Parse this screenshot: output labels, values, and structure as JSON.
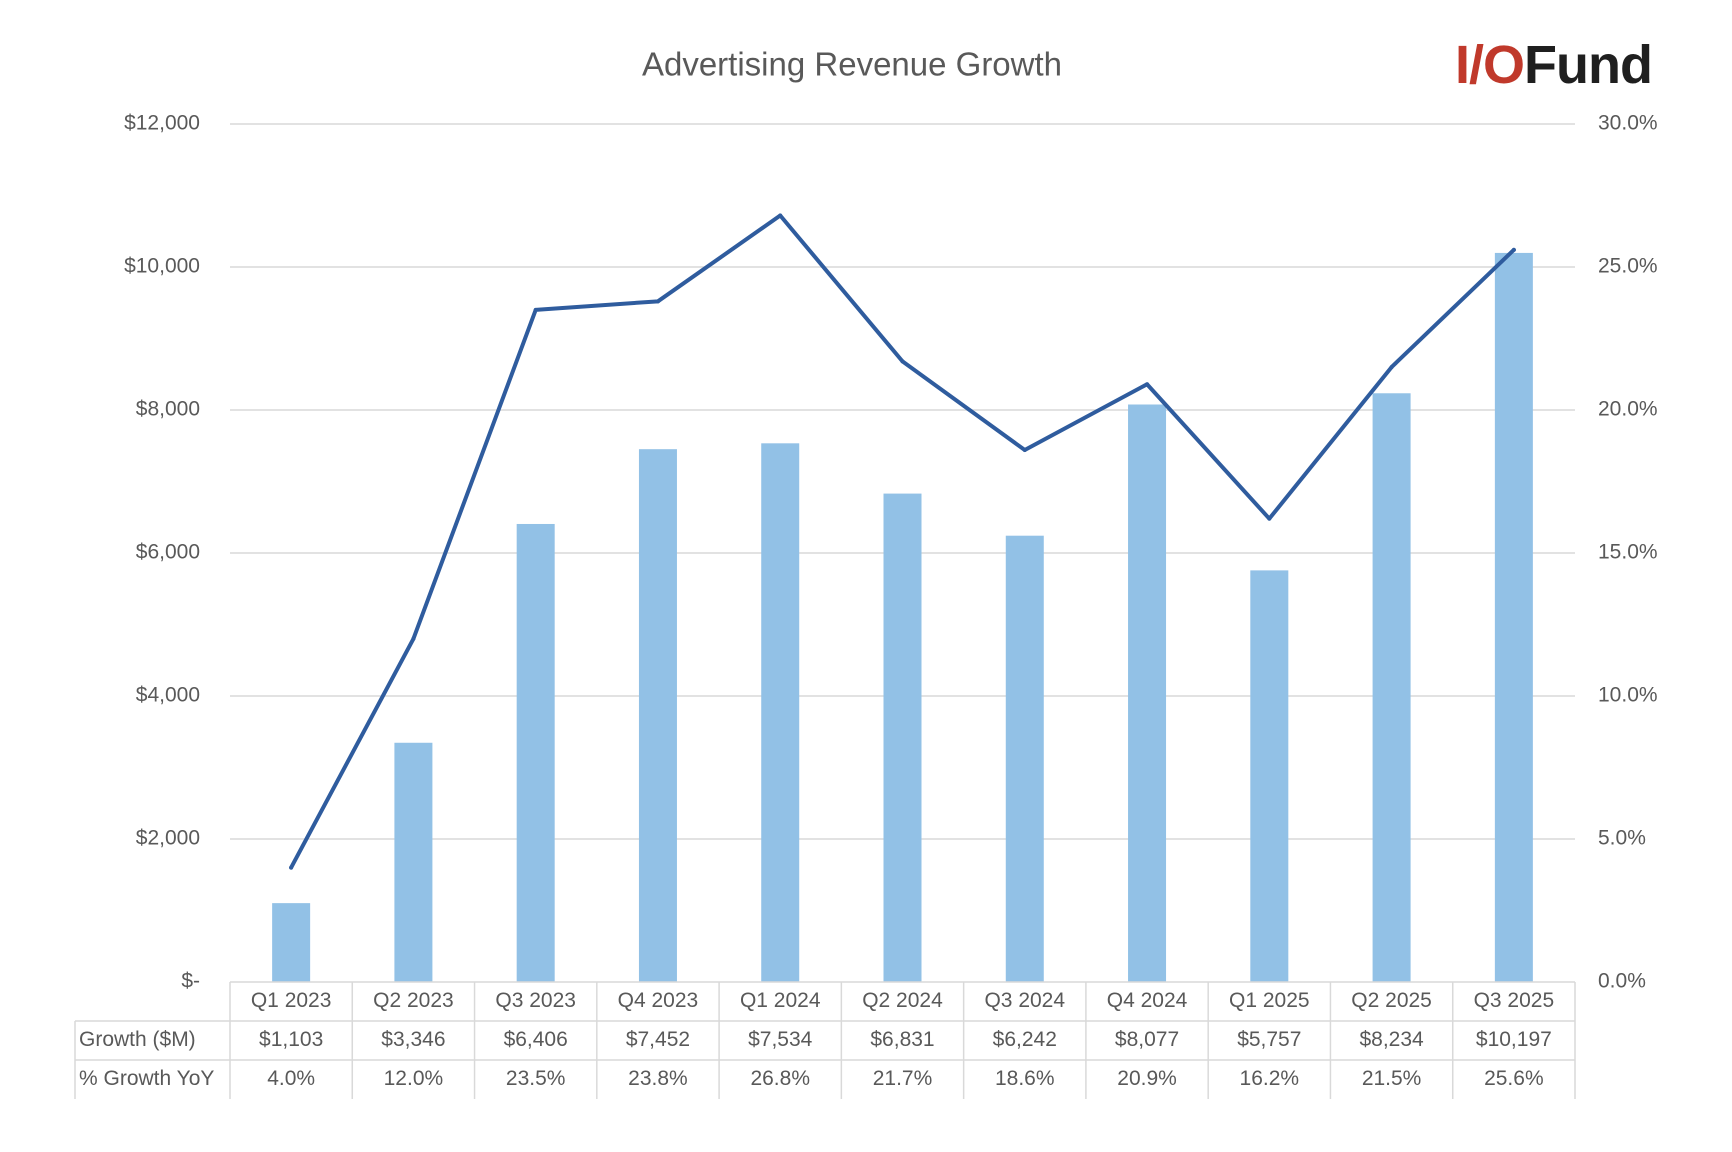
{
  "logo": {
    "io": "I/O",
    "fund": "Fund",
    "io_color": "#c0392b",
    "fund_color": "#1f1f1f"
  },
  "chart_data": {
    "type": "bar",
    "title": "Advertising Revenue Growth",
    "categories": [
      "Q1 2023",
      "Q2 2023",
      "Q3 2023",
      "Q4 2023",
      "Q1 2024",
      "Q2 2024",
      "Q3 2024",
      "Q4 2024",
      "Q1 2025",
      "Q2 2025",
      "Q3 2025"
    ],
    "series": [
      {
        "name": "Growth ($M)",
        "type": "bar",
        "axis": "left",
        "color": "#92c1e6",
        "values": [
          1103,
          3346,
          6406,
          7452,
          7534,
          6831,
          6242,
          8077,
          5757,
          8234,
          10197
        ],
        "labels": [
          "$1,103",
          "$3,346",
          "$6,406",
          "$7,452",
          "$7,534",
          "$6,831",
          "$6,242",
          "$8,077",
          "$5,757",
          "$8,234",
          "$10,197"
        ]
      },
      {
        "name": "% Growth YoY",
        "type": "line",
        "axis": "right",
        "color": "#2f5c9e",
        "values": [
          4.0,
          12.0,
          23.5,
          23.8,
          26.8,
          21.7,
          18.6,
          20.9,
          16.2,
          21.5,
          25.6
        ],
        "labels": [
          "4.0%",
          "12.0%",
          "23.5%",
          "23.8%",
          "26.8%",
          "21.7%",
          "18.6%",
          "20.9%",
          "16.2%",
          "21.5%",
          "25.6%"
        ]
      }
    ],
    "y_left": {
      "ylim": [
        0,
        12000
      ],
      "ticks": [
        0,
        2000,
        4000,
        6000,
        8000,
        10000,
        12000
      ],
      "tick_labels": [
        "$-",
        "$2,000",
        "$4,000",
        "$6,000",
        "$8,000",
        "$10,000",
        "$12,000"
      ]
    },
    "y_right": {
      "ylim": [
        0,
        30
      ],
      "ticks": [
        0,
        5,
        10,
        15,
        20,
        25,
        30
      ],
      "tick_labels": [
        "0.0%",
        "5.0%",
        "10.0%",
        "15.0%",
        "20.0%",
        "25.0%",
        "30.0%"
      ]
    },
    "grid": true,
    "legend": "data-table"
  }
}
